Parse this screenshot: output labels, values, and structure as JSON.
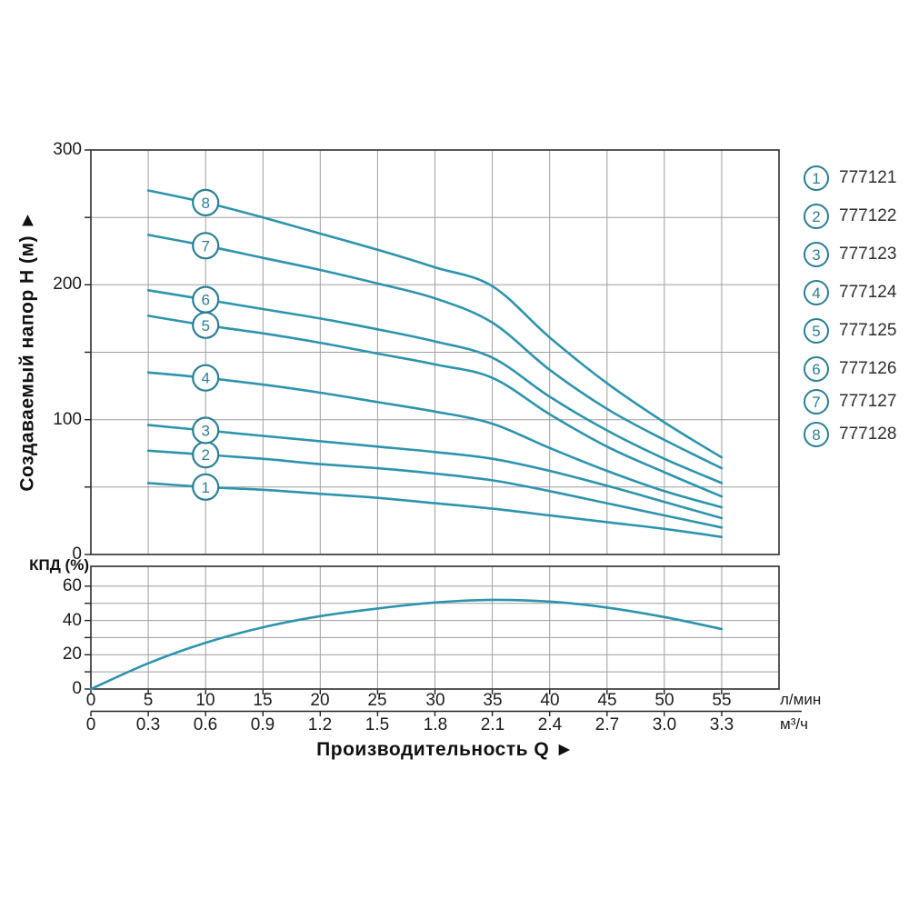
{
  "colors": {
    "curve": "#2e94ad",
    "circle_stroke": "#2b7f94",
    "circle_number": "#2b7f94",
    "grid": "#9e9e9e",
    "frame": "#3a3a3a",
    "axis": "#222222",
    "tick_text": "#1c1c1c",
    "legend_text": "#2e2e2e",
    "title_text": "#111111",
    "background": "#ffffff"
  },
  "axes": {
    "y_title": "Создаваемый напор H (м) ►",
    "x_title": "Производительность Q ►",
    "eff_label": "КПД (%)",
    "x_unit_primary": "л/мин",
    "x_unit_secondary": "м³/ч",
    "main_y_ticks": [
      "0",
      "100",
      "200",
      "300"
    ],
    "eff_y_ticks": [
      "0",
      "20",
      "40",
      "60"
    ],
    "x_ticks_lmin": [
      "0",
      "5",
      "10",
      "15",
      "20",
      "25",
      "30",
      "35",
      "40",
      "45",
      "50",
      "55"
    ],
    "x_ticks_m3h": [
      "0",
      "0.3",
      "0.6",
      "0.9",
      "1.2",
      "1.5",
      "1.8",
      "2.1",
      "2.4",
      "2.7",
      "3.0",
      "3.3"
    ]
  },
  "chart_data": [
    {
      "type": "line",
      "title": "Pump head vs flow (8 models)",
      "xlabel": "Производительность Q (л/мин)",
      "ylabel": "Создаваемый напор H (м)",
      "xlim": [
        0,
        60
      ],
      "ylim": [
        0,
        300
      ],
      "grid": "on",
      "x_grid_step": 5,
      "y_grid_step": 50,
      "x": [
        5,
        10,
        15,
        20,
        25,
        30,
        35,
        40,
        45,
        50,
        55
      ],
      "curve_label_x": 10,
      "series": [
        {
          "id": "1",
          "model": "777121",
          "values": [
            53,
            50,
            48,
            45,
            42,
            38,
            34,
            29,
            24,
            19,
            13
          ]
        },
        {
          "id": "2",
          "model": "777122",
          "values": [
            77,
            74,
            71,
            67,
            64,
            60,
            55,
            47,
            38,
            29,
            20
          ]
        },
        {
          "id": "3",
          "model": "777123",
          "values": [
            96,
            92,
            88,
            84,
            80,
            76,
            71,
            62,
            51,
            39,
            27
          ]
        },
        {
          "id": "4",
          "model": "777124",
          "values": [
            135,
            131,
            126,
            120,
            113,
            106,
            97,
            79,
            62,
            47,
            35
          ]
        },
        {
          "id": "5",
          "model": "777125",
          "values": [
            177,
            170,
            164,
            157,
            149,
            141,
            131,
            104,
            80,
            61,
            43
          ]
        },
        {
          "id": "6",
          "model": "777126",
          "values": [
            196,
            189,
            182,
            175,
            167,
            158,
            146,
            117,
            92,
            71,
            53
          ]
        },
        {
          "id": "7",
          "model": "777127",
          "values": [
            237,
            229,
            220,
            211,
            201,
            190,
            172,
            137,
            108,
            85,
            64
          ]
        },
        {
          "id": "8",
          "model": "777128",
          "values": [
            270,
            261,
            250,
            238,
            226,
            213,
            199,
            161,
            127,
            98,
            72
          ]
        }
      ]
    },
    {
      "type": "line",
      "title": "Efficiency",
      "xlabel": "Производительность Q (л/мин)",
      "ylabel": "КПД (%)",
      "xlim": [
        0,
        60
      ],
      "ylim": [
        0,
        70
      ],
      "grid": "on",
      "x_grid_step": 5,
      "y_grid_step": 10,
      "x": [
        0,
        5,
        10,
        15,
        20,
        25,
        30,
        35,
        40,
        45,
        50,
        55
      ],
      "values": [
        0,
        15,
        27,
        36,
        42.5,
        47,
        50.5,
        52,
        51,
        47.5,
        42,
        35
      ]
    }
  ]
}
